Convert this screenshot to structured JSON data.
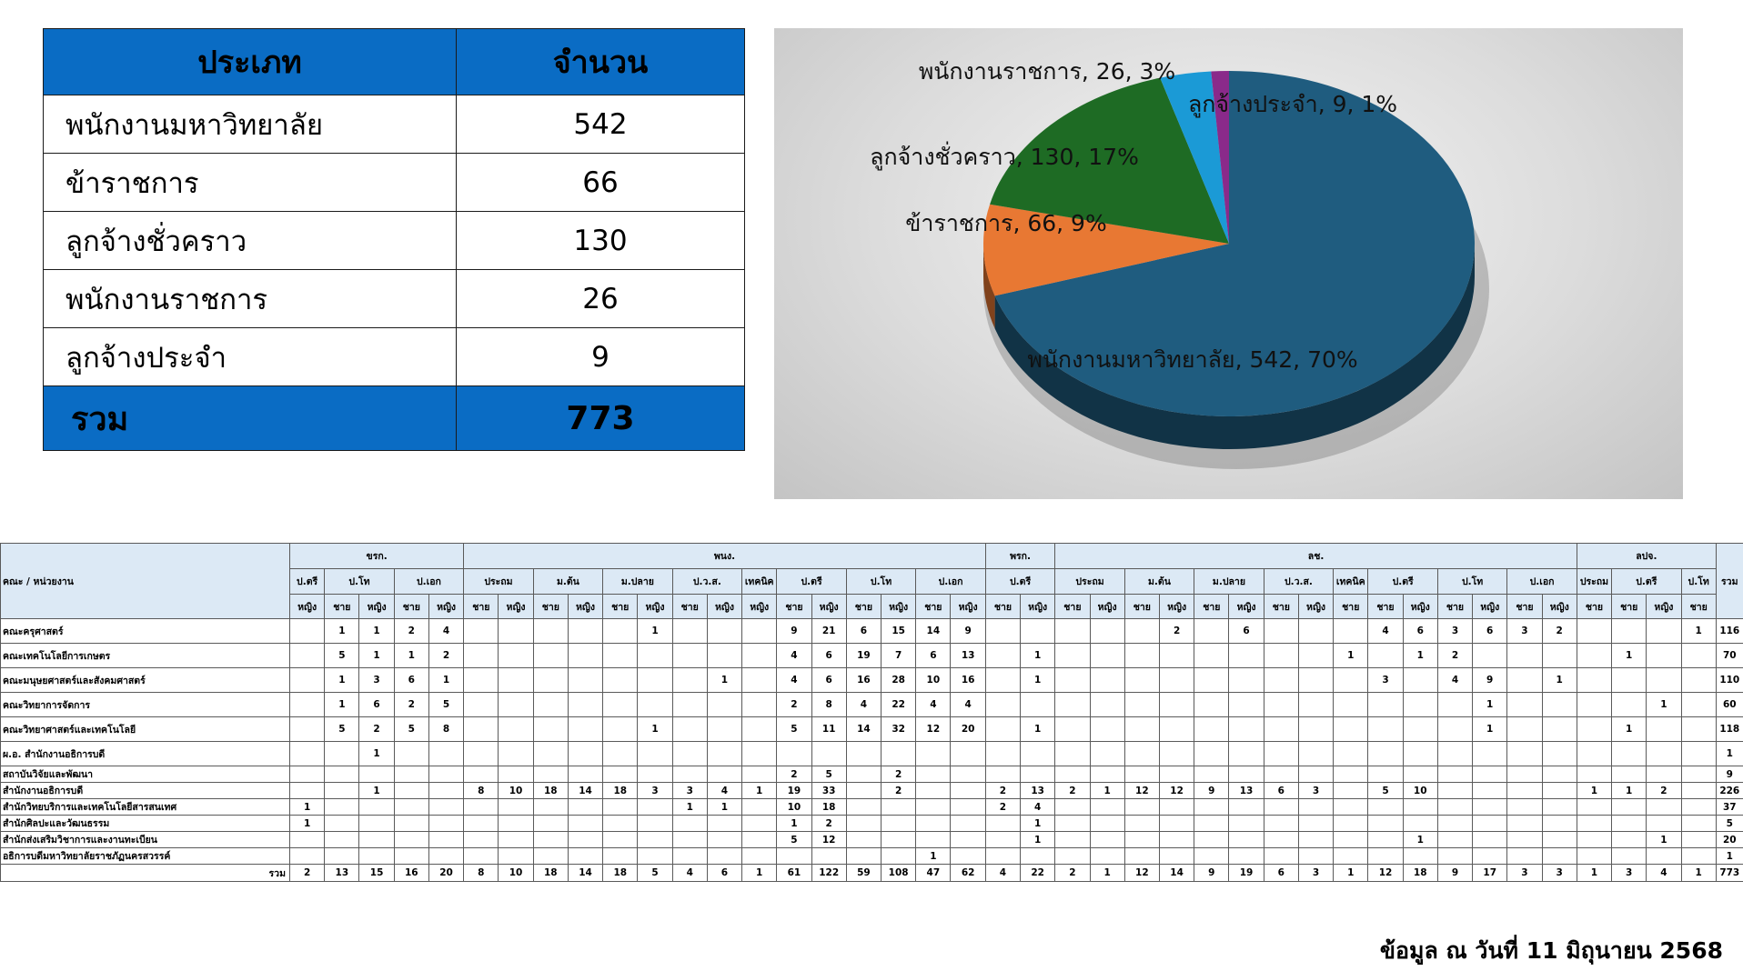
{
  "summary_table": {
    "header": [
      "ประเภท",
      "จำนวน"
    ],
    "rows": [
      {
        "label": "พนักงานมหาวิทยาลัย",
        "value": "542"
      },
      {
        "label": "ข้าราชการ",
        "value": "66"
      },
      {
        "label": "ลูกจ้างชั่วคราว",
        "value": "130"
      },
      {
        "label": "พนักงานราชการ",
        "value": "26"
      },
      {
        "label": "ลูกจ้างประจำ",
        "value": "9"
      }
    ],
    "total": {
      "label": "รวม",
      "value": "773"
    }
  },
  "chart_data": {
    "type": "pie",
    "style": "3d",
    "slices": [
      {
        "name": "พนักงานมหาวิทยาลัย",
        "value": 542,
        "percent": 70,
        "label": "พนักงานมหาวิทยาลัย, 542, 70%",
        "color": "#1f5c7f"
      },
      {
        "name": "ข้าราชการ",
        "value": 66,
        "percent": 9,
        "label": "ข้าราชการ, 66, 9%",
        "color": "#e87833"
      },
      {
        "name": "ลูกจ้างชั่วคราว",
        "value": 130,
        "percent": 17,
        "label": "ลูกจ้างชั่วคราว, 130, 17%",
        "color": "#1e6b24"
      },
      {
        "name": "พนักงานราชการ",
        "value": 26,
        "percent": 3,
        "label": "พนักงานราชการ, 26, 3%",
        "color": "#1b9ad6"
      },
      {
        "name": "ลูกจ้างประจำ",
        "value": 9,
        "percent": 1,
        "label": "ลูกจ้างประจำ, 9, 1%",
        "color": "#8a2a8a"
      }
    ]
  },
  "detail_table": {
    "unit_header": "คณะ / หน่วยงาน",
    "total_header": "รวม",
    "groups": [
      {
        "label": "ขรก.",
        "levels": [
          {
            "label": "ป.ตรี",
            "subs": [
              "หญิง"
            ]
          },
          {
            "label": "ป.โท",
            "subs": [
              "ชาย",
              "หญิง"
            ]
          },
          {
            "label": "ป.เอก",
            "subs": [
              "ชาย",
              "หญิง"
            ]
          }
        ]
      },
      {
        "label": "พนง.",
        "levels": [
          {
            "label": "ประถม",
            "subs": [
              "ชาย",
              "หญิง"
            ]
          },
          {
            "label": "ม.ต้น",
            "subs": [
              "ชาย",
              "หญิง"
            ]
          },
          {
            "label": "ม.ปลาย",
            "subs": [
              "ชาย",
              "หญิง"
            ]
          },
          {
            "label": "ป.ว.ส.",
            "subs": [
              "ชาย",
              "หญิง"
            ]
          },
          {
            "label": "เทคนิค",
            "subs": [
              "หญิง"
            ]
          },
          {
            "label": "ป.ตรี",
            "subs": [
              "ชาย",
              "หญิง"
            ]
          },
          {
            "label": "ป.โท",
            "subs": [
              "ชาย",
              "หญิง"
            ]
          },
          {
            "label": "ป.เอก",
            "subs": [
              "ชาย",
              "หญิง"
            ]
          }
        ]
      },
      {
        "label": "พรก.",
        "levels": [
          {
            "label": "ป.ตรี",
            "subs": [
              "ชาย",
              "หญิง"
            ]
          }
        ]
      },
      {
        "label": "ลช.",
        "levels": [
          {
            "label": "ประถม",
            "subs": [
              "ชาย",
              "หญิง"
            ]
          },
          {
            "label": "ม.ต้น",
            "subs": [
              "ชาย",
              "หญิง"
            ]
          },
          {
            "label": "ม.ปลาย",
            "subs": [
              "ชาย",
              "หญิง"
            ]
          },
          {
            "label": "ป.ว.ส.",
            "subs": [
              "ชาย",
              "หญิง"
            ]
          },
          {
            "label": "เทคนิค",
            "subs": [
              "ชาย"
            ]
          },
          {
            "label": "ป.ตรี",
            "subs": [
              "ชาย",
              "หญิง"
            ]
          },
          {
            "label": "ป.โท",
            "subs": [
              "ชาย",
              "หญิง"
            ]
          },
          {
            "label": "ป.เอก",
            "subs": [
              "ชาย",
              "หญิง"
            ]
          }
        ]
      },
      {
        "label": "ลปจ.",
        "levels": [
          {
            "label": "ประถม",
            "subs": [
              "ชาย"
            ]
          },
          {
            "label": "ป.ตรี",
            "subs": [
              "ชาย",
              "หญิง"
            ]
          },
          {
            "label": "ป.โท",
            "subs": [
              "ชาย"
            ]
          }
        ]
      }
    ],
    "rows": [
      {
        "unit": "คณะครุศาสตร์",
        "tall": true,
        "cells": [
          "",
          "1",
          "1",
          "2",
          "4",
          "",
          "",
          "",
          "",
          "",
          "1",
          "",
          "",
          "",
          "9",
          "21",
          "6",
          "15",
          "14",
          "9",
          "",
          "",
          "",
          "",
          "",
          "2",
          "",
          "6",
          "",
          "",
          "",
          "4",
          "6",
          "3",
          "6",
          "3",
          "2",
          "",
          "",
          "",
          "1"
        ],
        "total": "116"
      },
      {
        "unit": "คณะเทคโนโลยีการเกษตร",
        "tall": true,
        "cells": [
          "",
          "5",
          "1",
          "1",
          "2",
          "",
          "",
          "",
          "",
          "",
          "",
          "",
          "",
          "",
          "4",
          "6",
          "19",
          "7",
          "6",
          "13",
          "",
          "1",
          "",
          "",
          "",
          "",
          "",
          "",
          "",
          "",
          "1",
          "",
          "1",
          "2",
          "",
          "",
          "",
          "",
          "1",
          "",
          ""
        ],
        "total": "70"
      },
      {
        "unit": "คณะมนุษยศาสตร์และสังคมศาสตร์",
        "tall": true,
        "cells": [
          "",
          "1",
          "3",
          "6",
          "1",
          "",
          "",
          "",
          "",
          "",
          "",
          "",
          "1",
          "",
          "4",
          "6",
          "16",
          "28",
          "10",
          "16",
          "",
          "1",
          "",
          "",
          "",
          "",
          "",
          "",
          "",
          "",
          "",
          "3",
          "",
          "4",
          "9",
          "",
          "1",
          "",
          "",
          "",
          ""
        ],
        "total": "110"
      },
      {
        "unit": "คณะวิทยาการจัดการ",
        "tall": true,
        "cells": [
          "",
          "1",
          "6",
          "2",
          "5",
          "",
          "",
          "",
          "",
          "",
          "",
          "",
          "",
          "",
          "2",
          "8",
          "4",
          "22",
          "4",
          "4",
          "",
          "",
          "",
          "",
          "",
          "",
          "",
          "",
          "",
          "",
          "",
          "",
          "",
          "",
          "1",
          "",
          "",
          "",
          "",
          "1",
          ""
        ],
        "total": "60"
      },
      {
        "unit": "คณะวิทยาศาสตร์และเทคโนโลยี",
        "tall": true,
        "cells": [
          "",
          "5",
          "2",
          "5",
          "8",
          "",
          "",
          "",
          "",
          "",
          "1",
          "",
          "",
          "",
          "5",
          "11",
          "14",
          "32",
          "12",
          "20",
          "",
          "1",
          "",
          "",
          "",
          "",
          "",
          "",
          "",
          "",
          "",
          "",
          "",
          "",
          "1",
          "",
          "",
          "",
          "1",
          "",
          ""
        ],
        "total": "118"
      },
      {
        "unit": "ผ.อ. สำนักงานอธิการบดี",
        "tall": true,
        "cells": [
          "",
          "",
          "1",
          "",
          "",
          "",
          "",
          "",
          "",
          "",
          "",
          "",
          "",
          "",
          "",
          "",
          "",
          "",
          "",
          "",
          "",
          "",
          "",
          "",
          "",
          "",
          "",
          "",
          "",
          "",
          "",
          "",
          "",
          "",
          "",
          "",
          "",
          "",
          "",
          "",
          ""
        ],
        "total": "1"
      },
      {
        "unit": "สถาบันวิจัยและพัฒนา",
        "tall": false,
        "cells": [
          "",
          "",
          "",
          "",
          "",
          "",
          "",
          "",
          "",
          "",
          "",
          "",
          "",
          "",
          "2",
          "5",
          "",
          "2",
          "",
          "",
          "",
          "",
          "",
          "",
          "",
          "",
          "",
          "",
          "",
          "",
          "",
          "",
          "",
          "",
          "",
          "",
          "",
          "",
          "",
          "",
          ""
        ],
        "total": "9"
      },
      {
        "unit": "สำนักงานอธิการบดี",
        "tall": false,
        "cells": [
          "",
          "",
          "1",
          "",
          "",
          "8",
          "10",
          "18",
          "14",
          "18",
          "3",
          "3",
          "4",
          "1",
          "19",
          "33",
          "",
          "2",
          "",
          "",
          "2",
          "13",
          "2",
          "1",
          "12",
          "12",
          "9",
          "13",
          "6",
          "3",
          "",
          "5",
          "10",
          "",
          "",
          "",
          "",
          "1",
          "1",
          "2",
          ""
        ],
        "total": "226"
      },
      {
        "unit": "สำนักวิทยบริการและเทคโนโลยีสารสนเทศ",
        "tall": false,
        "cells": [
          "1",
          "",
          "",
          "",
          "",
          "",
          "",
          "",
          "",
          "",
          "",
          "1",
          "1",
          "",
          "10",
          "18",
          "",
          "",
          "",
          "",
          "2",
          "4",
          "",
          "",
          "",
          "",
          "",
          "",
          "",
          "",
          "",
          "",
          "",
          "",
          "",
          "",
          "",
          "",
          "",
          "",
          ""
        ],
        "total": "37"
      },
      {
        "unit": "สำนักศิลปะและวัฒนธรรม",
        "tall": false,
        "cells": [
          "1",
          "",
          "",
          "",
          "",
          "",
          "",
          "",
          "",
          "",
          "",
          "",
          "",
          "",
          "1",
          "2",
          "",
          "",
          "",
          "",
          "",
          "1",
          "",
          "",
          "",
          "",
          "",
          "",
          "",
          "",
          "",
          "",
          "",
          "",
          "",
          "",
          "",
          "",
          "",
          "",
          ""
        ],
        "total": "5"
      },
      {
        "unit": "สำนักส่งเสริมวิชาการและงานทะเบียน",
        "tall": false,
        "cells": [
          "",
          "",
          "",
          "",
          "",
          "",
          "",
          "",
          "",
          "",
          "",
          "",
          "",
          "",
          "5",
          "12",
          "",
          "",
          "",
          "",
          "",
          "1",
          "",
          "",
          "",
          "",
          "",
          "",
          "",
          "",
          "",
          "",
          "1",
          "",
          "",
          "",
          "",
          "",
          "",
          "1",
          ""
        ],
        "total": "20"
      },
      {
        "unit": "อธิการบดีมหาวิทยาลัยราชภัฏนครสวรรค์",
        "tall": false,
        "cells": [
          "",
          "",
          "",
          "",
          "",
          "",
          "",
          "",
          "",
          "",
          "",
          "",
          "",
          "",
          "",
          "",
          "",
          "",
          "1",
          "",
          "",
          "",
          "",
          "",
          "",
          "",
          "",
          "",
          "",
          "",
          "",
          "",
          "",
          "",
          "",
          "",
          "",
          "",
          "",
          "",
          ""
        ],
        "total": "1"
      }
    ],
    "sum_row": {
      "label": "รวม",
      "cells": [
        "2",
        "13",
        "15",
        "16",
        "20",
        "8",
        "10",
        "18",
        "14",
        "18",
        "5",
        "4",
        "6",
        "1",
        "61",
        "122",
        "59",
        "108",
        "47",
        "62",
        "4",
        "22",
        "2",
        "1",
        "12",
        "14",
        "9",
        "19",
        "6",
        "3",
        "1",
        "12",
        "18",
        "9",
        "17",
        "3",
        "3",
        "1",
        "3",
        "4",
        "1"
      ],
      "total": "773"
    }
  },
  "footnote": "ข้อมูล ณ วันที่ 11 มิถุนายน 2568"
}
